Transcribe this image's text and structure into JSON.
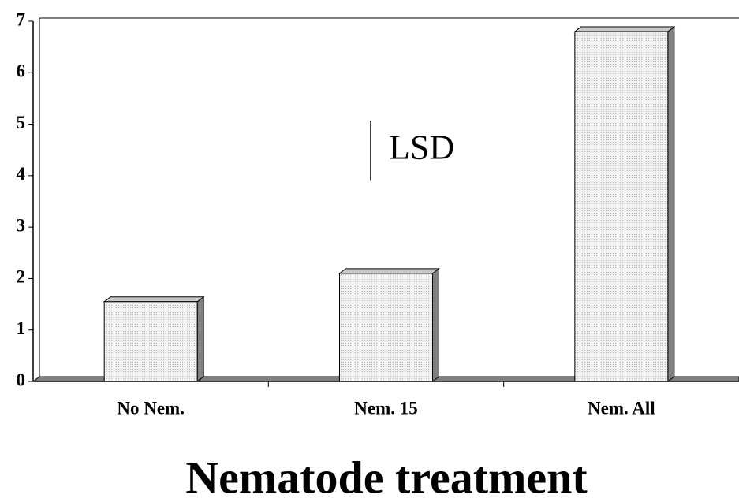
{
  "chart_data": {
    "type": "bar",
    "categories": [
      "No Nem.",
      "Nem. 15",
      "Nem. All"
    ],
    "values": [
      1.55,
      2.1,
      6.8
    ],
    "color": "#e4e4e4",
    "ylim": [
      0,
      7
    ],
    "yticks": [
      0,
      1,
      2,
      3,
      4,
      5,
      6,
      7
    ],
    "x_label": "Nematode treatment",
    "annotations": [
      {
        "text": "LSD",
        "from": 3.9,
        "to": 5.07
      }
    ],
    "grid": false
  }
}
